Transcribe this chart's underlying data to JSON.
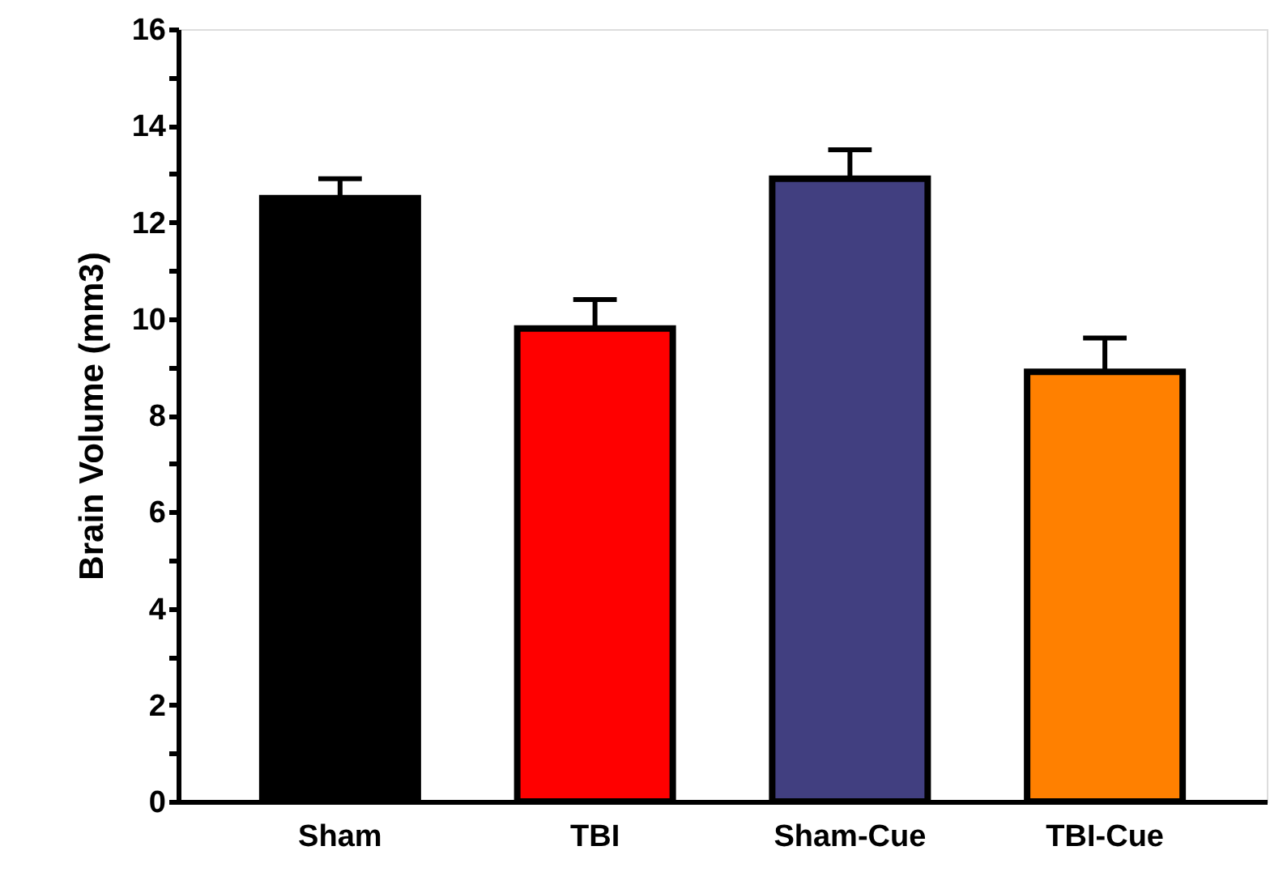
{
  "chart_data": {
    "type": "bar",
    "ylabel": "Brain Volume (mm3)",
    "categories": [
      "Sham",
      "TBI",
      "Sham-Cue",
      "TBI-Cue"
    ],
    "values": [
      12.5,
      9.8,
      12.9,
      8.9
    ],
    "colors": [
      "#000000",
      "#ff0000",
      "#413f80",
      "#ff8000"
    ],
    "errors": [
      [
        12.5,
        12.9
      ],
      [
        9.8,
        10.4
      ],
      [
        12.9,
        13.5
      ],
      [
        8.9,
        9.6
      ]
    ],
    "ylim": [
      0,
      16
    ],
    "yticks": [
      0,
      {
        "value": 1,
        "label": null
      },
      2,
      {
        "value": 3,
        "label": null
      },
      4,
      {
        "value": 5,
        "label": null
      },
      6,
      {
        "value": 7,
        "label": null
      },
      8,
      {
        "value": 9,
        "label": null
      },
      10,
      {
        "value": 11,
        "label": null
      },
      12,
      {
        "value": 13,
        "label": null
      },
      14,
      {
        "value": 15,
        "label": null
      },
      16
    ],
    "grid": false
  }
}
